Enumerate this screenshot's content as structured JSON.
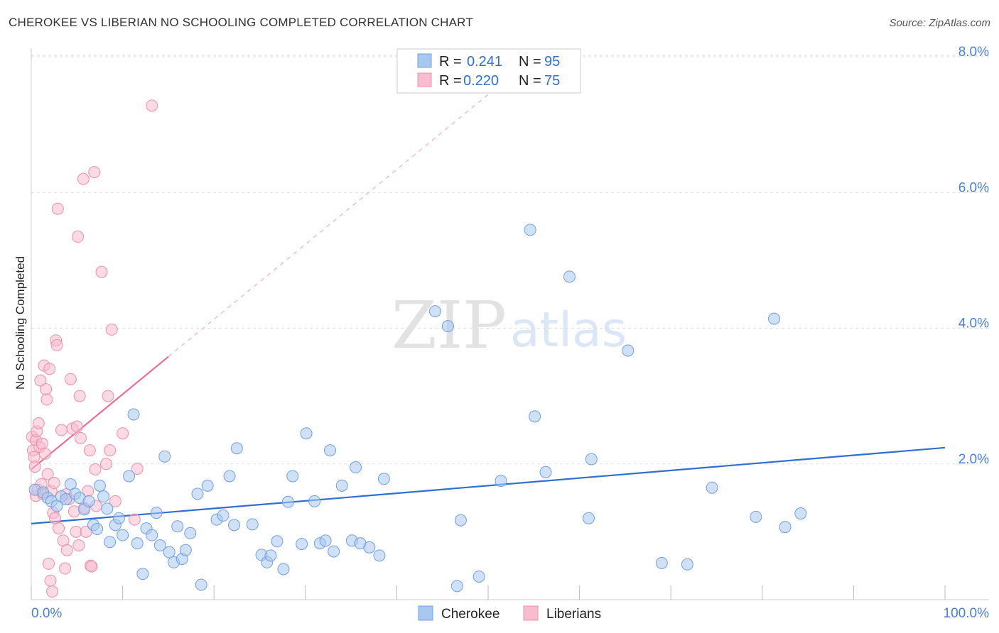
{
  "header": {
    "title": "CHEROKEE VS LIBERIAN NO SCHOOLING COMPLETED CORRELATION CHART",
    "source": "Source: ZipAtlas.com"
  },
  "watermark": {
    "zip": "ZIP",
    "atlas": "atlas"
  },
  "colors": {
    "cherokee_fill": "#a9c8f0",
    "cherokee_stroke": "#6f9fe0",
    "cherokee_line": "#2f6fcf",
    "liberians_fill": "#f7bccd",
    "liberians_stroke": "#ec8fab",
    "liberians_line": "#e76f96",
    "tick_label": "#4a7fcf",
    "grid": "#dddddd"
  },
  "legend": {
    "rows": [
      {
        "series": "Cherokee",
        "r_label": "R =",
        "r_value": "0.241",
        "n_label": "N =",
        "n_value": "95"
      },
      {
        "series": "Liberians",
        "r_label": "R =",
        "r_value": "0.220",
        "n_label": "N =",
        "n_value": "75"
      }
    ]
  },
  "chart_data": {
    "type": "scatter",
    "title": "CHEROKEE VS LIBERIAN NO SCHOOLING COMPLETED CORRELATION CHART",
    "ylabel": "No Schooling Completed",
    "xlabel": "",
    "xlim": [
      0,
      100
    ],
    "ylim": [
      0,
      8.0
    ],
    "x_tick_labels": [
      "0.0%",
      "100.0%"
    ],
    "y_ticks": [
      2.0,
      4.0,
      6.0,
      8.0
    ],
    "y_tick_labels": [
      "2.0%",
      "4.0%",
      "6.0%",
      "8.0%"
    ],
    "grid": "horizontal dashed",
    "legend_position": "bottom-center",
    "series": [
      {
        "name": "Cherokee",
        "color": "#a9c8f0",
        "trend": {
          "x": [
            0,
            100
          ],
          "y": [
            1.12,
            2.24
          ],
          "dashed_extension": false
        },
        "points": [
          [
            0.4,
            1.62
          ],
          [
            1.3,
            1.58
          ],
          [
            1.8,
            1.5
          ],
          [
            2.2,
            1.45
          ],
          [
            2.8,
            1.38
          ],
          [
            3.3,
            1.52
          ],
          [
            3.8,
            1.48
          ],
          [
            4.3,
            1.7
          ],
          [
            4.8,
            1.56
          ],
          [
            5.3,
            1.5
          ],
          [
            5.8,
            1.33
          ],
          [
            6.3,
            1.45
          ],
          [
            6.8,
            1.1
          ],
          [
            7.2,
            1.04
          ],
          [
            7.5,
            1.68
          ],
          [
            7.9,
            1.52
          ],
          [
            8.3,
            1.34
          ],
          [
            8.6,
            0.85
          ],
          [
            9.2,
            1.1
          ],
          [
            9.6,
            1.2
          ],
          [
            10.0,
            0.95
          ],
          [
            10.7,
            1.82
          ],
          [
            11.2,
            2.73
          ],
          [
            11.6,
            0.83
          ],
          [
            12.2,
            0.38
          ],
          [
            12.6,
            1.05
          ],
          [
            13.2,
            0.95
          ],
          [
            13.7,
            1.28
          ],
          [
            14.1,
            0.8
          ],
          [
            14.6,
            2.11
          ],
          [
            15.1,
            0.7
          ],
          [
            15.6,
            0.55
          ],
          [
            16.0,
            1.08
          ],
          [
            16.5,
            0.6
          ],
          [
            16.9,
            0.73
          ],
          [
            17.4,
            0.98
          ],
          [
            18.2,
            1.56
          ],
          [
            18.6,
            0.22
          ],
          [
            19.3,
            1.68
          ],
          [
            20.3,
            1.18
          ],
          [
            21.0,
            1.24
          ],
          [
            21.7,
            1.82
          ],
          [
            22.2,
            1.1
          ],
          [
            22.5,
            2.23
          ],
          [
            24.2,
            1.11
          ],
          [
            25.2,
            0.66
          ],
          [
            25.8,
            0.55
          ],
          [
            26.2,
            0.65
          ],
          [
            26.9,
            0.86
          ],
          [
            27.6,
            0.45
          ],
          [
            28.1,
            1.44
          ],
          [
            28.6,
            1.82
          ],
          [
            29.6,
            0.82
          ],
          [
            30.1,
            2.45
          ],
          [
            31.0,
            1.45
          ],
          [
            31.6,
            0.83
          ],
          [
            32.2,
            0.87
          ],
          [
            32.7,
            2.2
          ],
          [
            33.1,
            0.71
          ],
          [
            34.0,
            1.68
          ],
          [
            35.1,
            0.87
          ],
          [
            35.5,
            1.95
          ],
          [
            36.0,
            0.83
          ],
          [
            37.0,
            0.77
          ],
          [
            38.1,
            0.65
          ],
          [
            38.6,
            1.78
          ],
          [
            44.2,
            4.25
          ],
          [
            45.6,
            4.03
          ],
          [
            46.6,
            0.2
          ],
          [
            47.0,
            1.17
          ],
          [
            49.0,
            0.34
          ],
          [
            51.4,
            1.75
          ],
          [
            54.6,
            5.45
          ],
          [
            55.1,
            2.7
          ],
          [
            56.3,
            1.88
          ],
          [
            58.9,
            4.76
          ],
          [
            61.0,
            1.2
          ],
          [
            61.3,
            2.07
          ],
          [
            65.3,
            3.67
          ],
          [
            69.0,
            0.54
          ],
          [
            71.8,
            0.52
          ],
          [
            74.5,
            1.65
          ],
          [
            79.3,
            1.22
          ],
          [
            81.3,
            4.14
          ],
          [
            82.5,
            1.07
          ],
          [
            84.2,
            1.27
          ]
        ]
      },
      {
        "name": "Liberians",
        "color": "#f7bccd",
        "trend": {
          "x": [
            0,
            15
          ],
          "y": [
            1.92,
            3.58
          ],
          "dashed_extension_to": [
            52.5,
            7.72
          ]
        },
        "points": [
          [
            0.1,
            2.4
          ],
          [
            0.2,
            2.2
          ],
          [
            0.3,
            2.1
          ],
          [
            0.4,
            1.96
          ],
          [
            0.5,
            2.35
          ],
          [
            0.5,
            1.53
          ],
          [
            0.6,
            2.48
          ],
          [
            0.7,
            1.62
          ],
          [
            0.8,
            2.6
          ],
          [
            0.9,
            2.25
          ],
          [
            1.0,
            3.23
          ],
          [
            1.1,
            1.7
          ],
          [
            1.2,
            2.3
          ],
          [
            1.3,
            1.55
          ],
          [
            1.4,
            3.45
          ],
          [
            1.5,
            2.15
          ],
          [
            1.6,
            3.1
          ],
          [
            1.7,
            2.95
          ],
          [
            1.8,
            1.85
          ],
          [
            1.9,
            0.53
          ],
          [
            2.0,
            3.4
          ],
          [
            2.1,
            0.28
          ],
          [
            2.2,
            1.6
          ],
          [
            2.3,
            0.12
          ],
          [
            2.4,
            1.28
          ],
          [
            2.5,
            1.72
          ],
          [
            2.6,
            1.2
          ],
          [
            2.7,
            3.82
          ],
          [
            2.8,
            3.75
          ],
          [
            2.9,
            5.76
          ],
          [
            3.0,
            1.05
          ],
          [
            3.3,
            2.5
          ],
          [
            3.5,
            0.87
          ],
          [
            3.7,
            0.46
          ],
          [
            3.8,
            1.55
          ],
          [
            3.9,
            0.73
          ],
          [
            4.1,
            1.48
          ],
          [
            4.3,
            3.25
          ],
          [
            4.5,
            2.52
          ],
          [
            4.7,
            1.3
          ],
          [
            4.9,
            1.0
          ],
          [
            5.0,
            2.55
          ],
          [
            5.1,
            5.35
          ],
          [
            5.2,
            0.8
          ],
          [
            5.3,
            3.0
          ],
          [
            5.4,
            2.38
          ],
          [
            5.7,
            6.2
          ],
          [
            5.8,
            1.35
          ],
          [
            6.0,
            1.0
          ],
          [
            6.2,
            1.6
          ],
          [
            6.4,
            2.2
          ],
          [
            6.5,
            0.5
          ],
          [
            6.6,
            0.49
          ],
          [
            6.9,
            6.3
          ],
          [
            7.0,
            1.92
          ],
          [
            7.1,
            1.38
          ],
          [
            7.7,
            4.83
          ],
          [
            8.2,
            2.0
          ],
          [
            8.4,
            3.0
          ],
          [
            8.6,
            2.2
          ],
          [
            8.8,
            3.98
          ],
          [
            9.2,
            1.45
          ],
          [
            10.0,
            2.45
          ],
          [
            11.3,
            1.18
          ],
          [
            11.6,
            1.93
          ],
          [
            13.2,
            7.28
          ]
        ]
      }
    ]
  }
}
